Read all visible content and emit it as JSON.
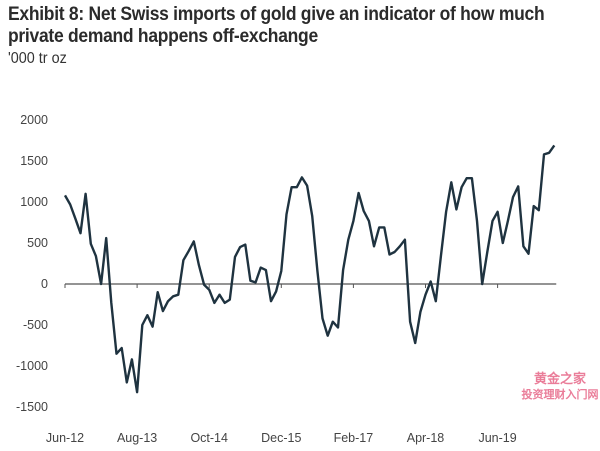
{
  "chart_data": {
    "type": "line",
    "title": "Exhibit 8: Net Swiss imports of gold give an indicator of how much private demand happens off-exchange",
    "subtitle": "'000 tr oz",
    "xlabel": "",
    "ylabel": "'000 tr oz",
    "ylim": [
      -1500,
      2000
    ],
    "yticks": [
      2000,
      1500,
      1000,
      500,
      0,
      -500,
      -1000,
      -1500
    ],
    "xtick_labels": [
      "Jun-12",
      "Aug-13",
      "Oct-14",
      "Dec-15",
      "Feb-17",
      "Apr-18",
      "Jun-19"
    ],
    "xtick_months": [
      0,
      14,
      28,
      42,
      56,
      70,
      84
    ],
    "grid": false,
    "legend": "none",
    "series": [
      {
        "name": "Net Swiss imports of gold",
        "color": "#1f3340",
        "x_months_from_start": "monthly from Jun-12",
        "values": [
          1080,
          970,
          800,
          620,
          1100,
          490,
          340,
          0,
          560,
          -230,
          -850,
          -780,
          -1200,
          -920,
          -1320,
          -500,
          -380,
          -520,
          -100,
          -330,
          -210,
          -150,
          -130,
          290,
          400,
          520,
          230,
          -10,
          -70,
          -230,
          -130,
          -230,
          -190,
          330,
          450,
          480,
          40,
          20,
          200,
          170,
          -210,
          -90,
          160,
          850,
          1180,
          1180,
          1300,
          1200,
          830,
          160,
          -420,
          -630,
          -460,
          -530,
          170,
          540,
          770,
          1110,
          890,
          770,
          460,
          690,
          690,
          360,
          390,
          460,
          540,
          -460,
          -720,
          -340,
          -130,
          30,
          -210,
          350,
          880,
          1240,
          910,
          1180,
          1290,
          1290,
          770,
          0,
          390,
          770,
          880,
          500,
          770,
          1060,
          1190,
          460,
          370,
          950,
          900,
          1580,
          1600,
          1690
        ]
      }
    ]
  },
  "watermark": {
    "line1": "黄金之家",
    "line2": "投资理财入门网",
    "color": "#e8708f"
  }
}
